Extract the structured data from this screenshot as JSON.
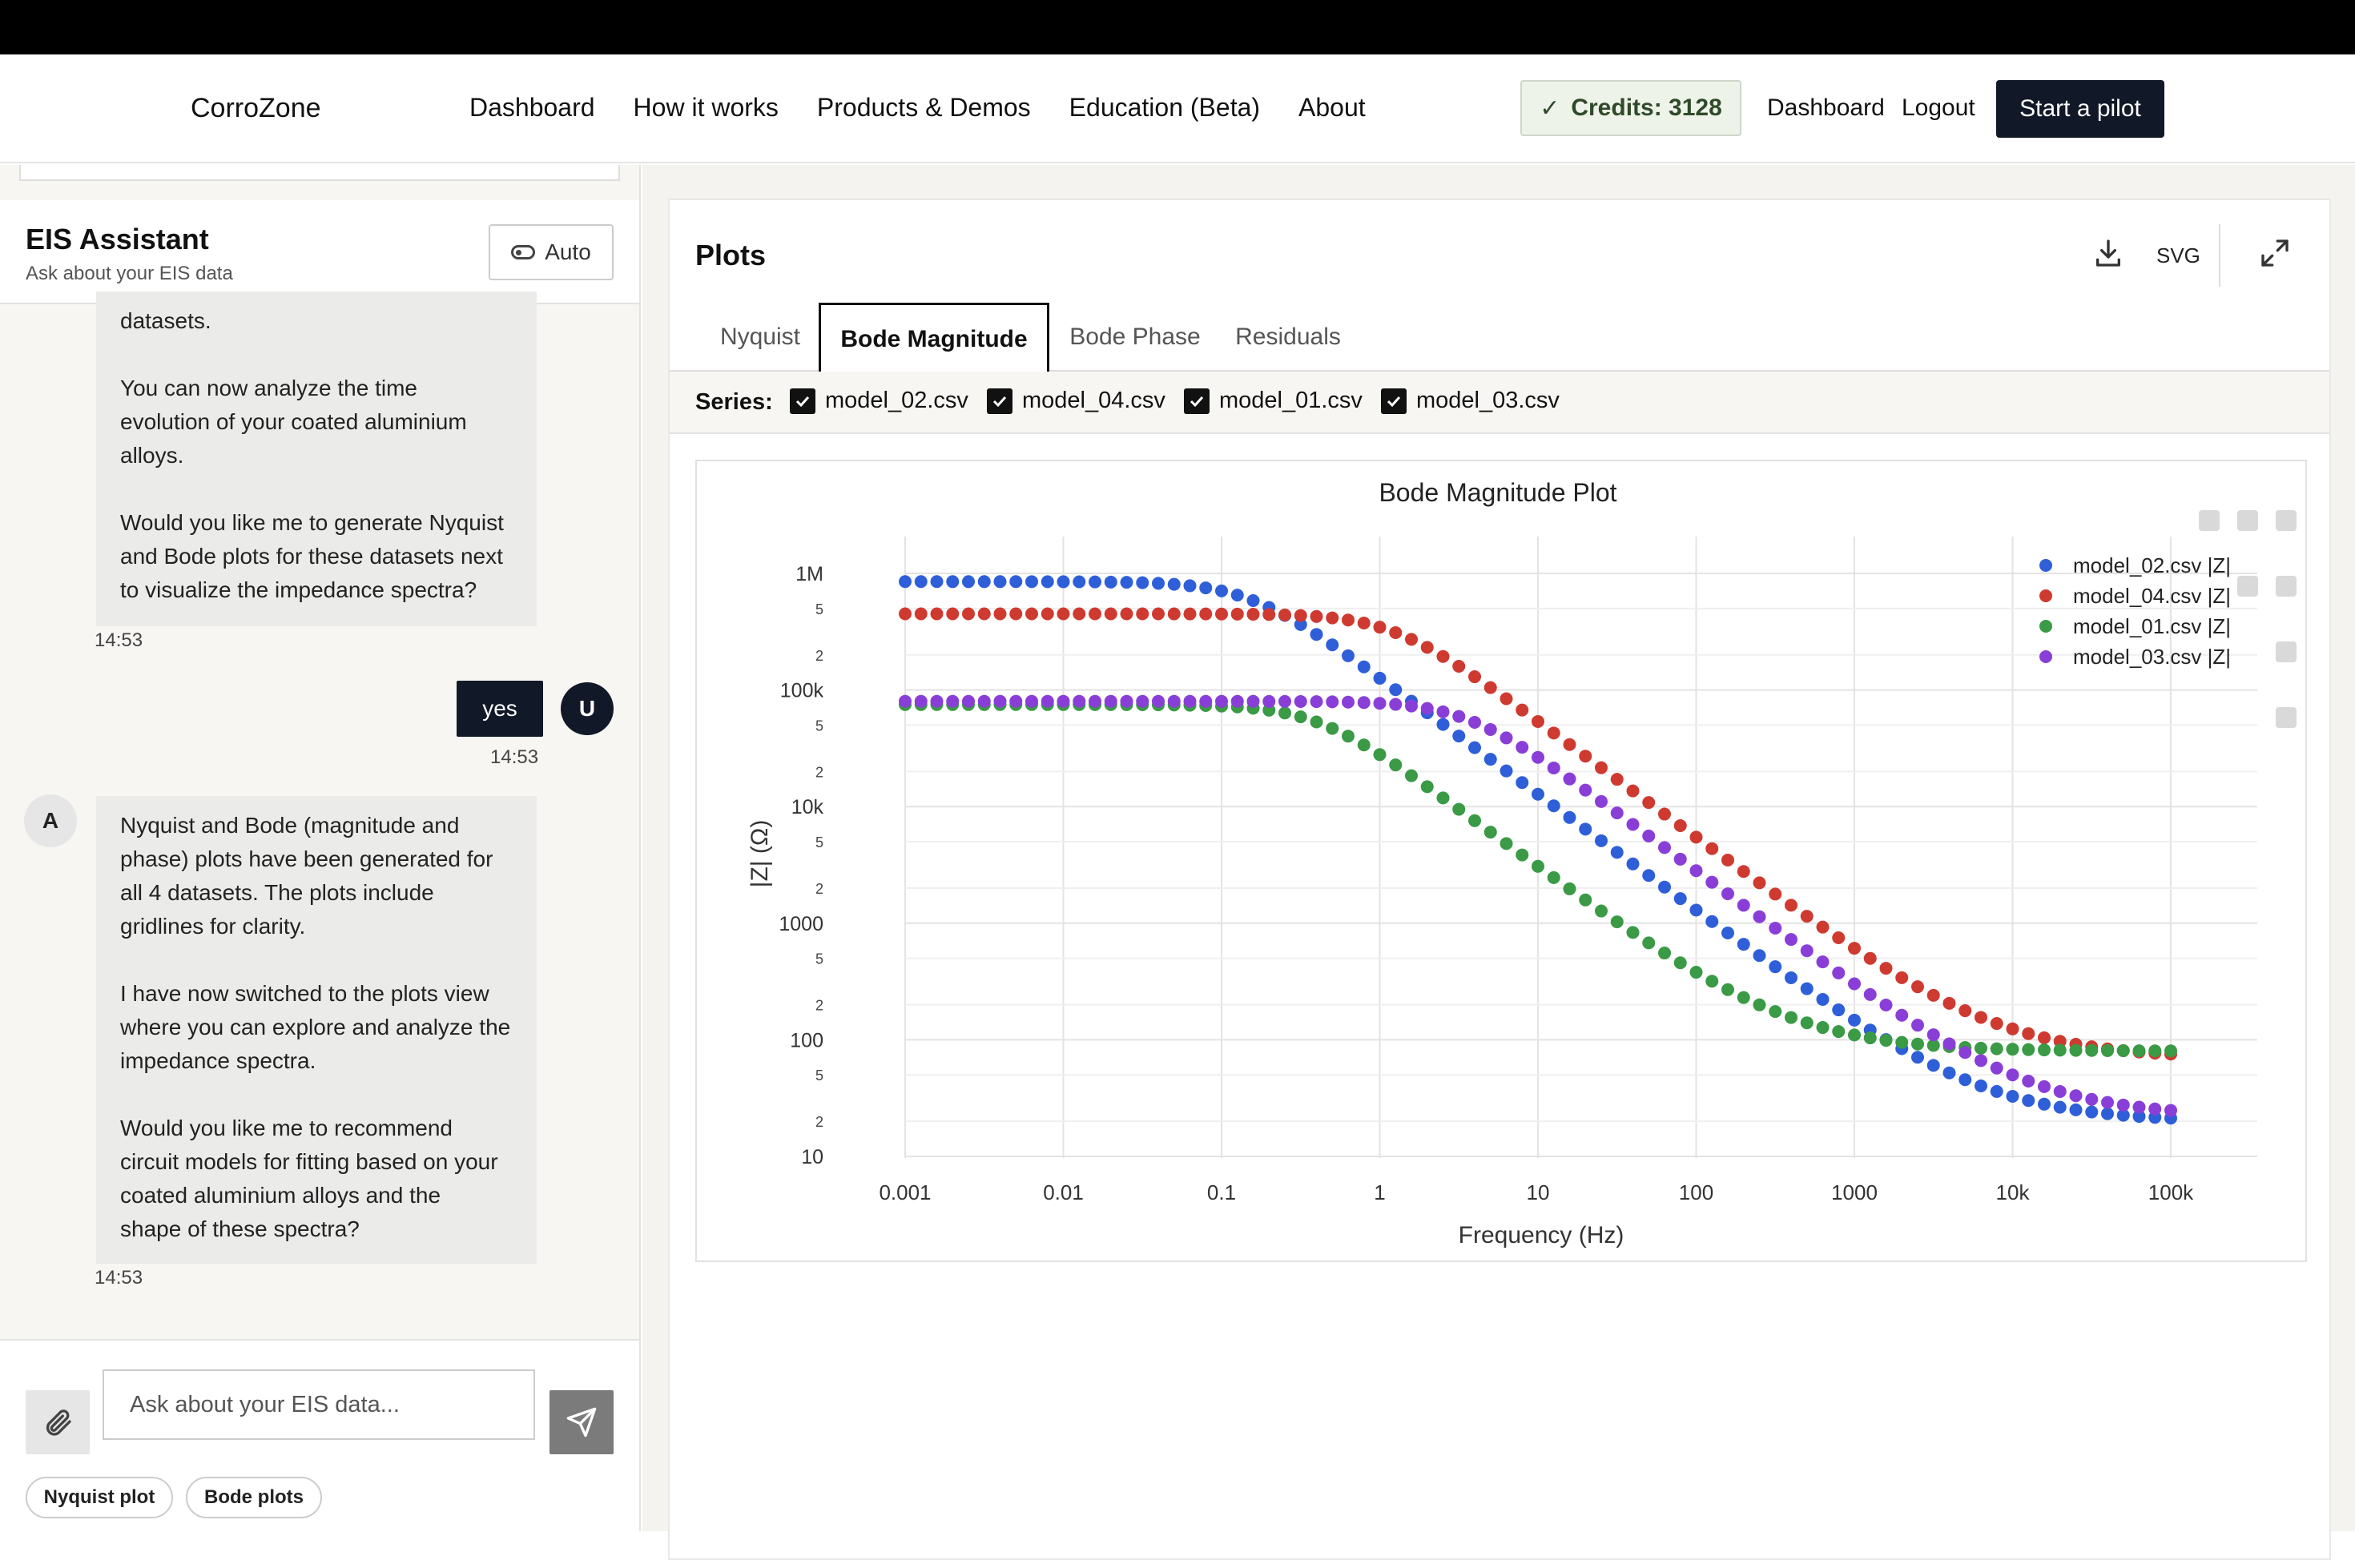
{
  "nav": {
    "brand": "CorroZone",
    "links": [
      "Dashboard",
      "How it works",
      "Products & Demos",
      "Education (Beta)",
      "About"
    ],
    "credits": "Credits: 3128",
    "dashboard": "Dashboard",
    "logout": "Logout",
    "pilot": "Start a pilot"
  },
  "chat": {
    "title": "EIS Assistant",
    "subtitle": "Ask about your EIS data",
    "auto": "Auto",
    "msg1_lines": [
      "datasets.",
      "",
      "You can now analyze the time",
      "evolution of your coated aluminium",
      "alloys.",
      "",
      "Would you like me to generate Nyquist",
      "and Bode plots for these datasets next",
      "to visualize the impedance spectra?"
    ],
    "msg1_time": "14:53",
    "user_msg": "yes",
    "user_avatar": "U",
    "user_time": "14:53",
    "assistant_avatar": "A",
    "msg2_lines": [
      "Nyquist and Bode (magnitude and",
      "phase) plots have been generated for",
      "all 4 datasets. The plots include",
      "gridlines for clarity.",
      "",
      "I have now switched to the plots view",
      "where you can explore and analyze the",
      "impedance spectra.",
      "",
      "Would you like me to recommend",
      "circuit models for fitting based on your",
      "coated aluminium alloys and the",
      "shape of these spectra?"
    ],
    "msg2_time": "14:53",
    "input_placeholder": "Ask about your EIS data...",
    "chips": [
      "Nyquist plot",
      "Bode plots"
    ]
  },
  "plots": {
    "title": "Plots",
    "svg_label": "SVG",
    "tabs": [
      "Nyquist",
      "Bode Magnitude",
      "Bode Phase",
      "Residuals"
    ],
    "active_tab": "Bode Magnitude",
    "series_label": "Series:",
    "series": [
      "model_02.csv",
      "model_04.csv",
      "model_01.csv",
      "model_03.csv"
    ]
  },
  "chart_data": {
    "type": "scatter",
    "title": "Bode Magnitude Plot",
    "xlabel": "Frequency (Hz)",
    "ylabel": "|Z| (Ω)",
    "xscale": "log",
    "yscale": "log",
    "xlim": [
      0.001,
      100000
    ],
    "ylim": [
      10,
      1000000
    ],
    "x_ticks": [
      "0.001",
      "0.01",
      "0.1",
      "1",
      "10",
      "100",
      "1000",
      "10k",
      "100k"
    ],
    "y_ticks_major": [
      "10",
      "100",
      "1000",
      "10k",
      "100k",
      "1M"
    ],
    "y_ticks_minor": [
      "2",
      "5"
    ],
    "grid": true,
    "legend_position": "top-right",
    "series": [
      {
        "name": "model_02.csv |Z|",
        "color": "#2f5fd8",
        "R_low": 850000,
        "R_high": 20,
        "fc": 0.15
      },
      {
        "name": "model_04.csv |Z|",
        "color": "#cf3a30",
        "R_low": 450000,
        "R_high": 70,
        "fc": 1.2
      },
      {
        "name": "model_01.csv |Z|",
        "color": "#3a9a45",
        "R_low": 75000,
        "R_high": 80,
        "fc": 0.4
      },
      {
        "name": "model_03.csv |Z|",
        "color": "#8a3ed8",
        "R_low": 80000,
        "R_high": 22,
        "fc": 3.5
      }
    ],
    "points_per_series": 81
  }
}
